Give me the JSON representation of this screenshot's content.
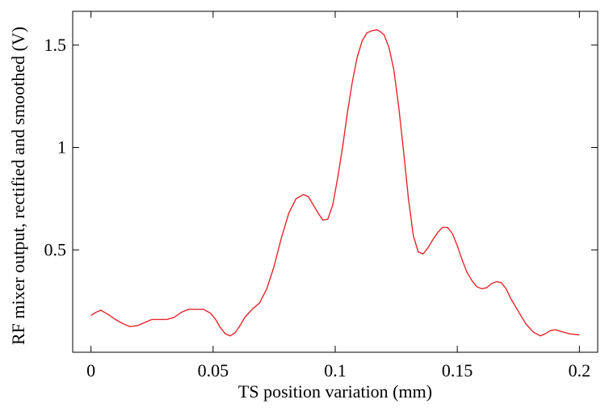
{
  "chart_data": {
    "type": "line",
    "title": "",
    "xlabel": "TS position variation (mm)",
    "ylabel": "RF mixer output, rectified and smoothed (V)",
    "xlim": [
      -0.0075,
      0.2075
    ],
    "ylim": [
      0.0,
      1.665
    ],
    "x_ticks": [
      0,
      0.05,
      0.1,
      0.15,
      0.2
    ],
    "x_tick_labels": [
      "0",
      "0.05",
      "0.1",
      "0.15",
      "0.2"
    ],
    "y_ticks": [
      0.5,
      1,
      1.5
    ],
    "y_tick_labels": [
      "0.5",
      "1",
      "1.5"
    ],
    "grid": false,
    "line_color": "#e8262b",
    "series": [
      {
        "x": [
          0.0,
          0.002,
          0.004,
          0.007,
          0.01,
          0.013,
          0.016,
          0.019,
          0.022,
          0.025,
          0.028,
          0.031,
          0.034,
          0.037,
          0.04,
          0.043,
          0.046,
          0.049,
          0.051,
          0.053,
          0.055,
          0.057,
          0.059,
          0.061,
          0.063,
          0.066,
          0.069,
          0.072,
          0.075,
          0.078,
          0.081,
          0.084,
          0.087,
          0.089,
          0.091,
          0.093,
          0.095,
          0.097,
          0.099,
          0.101,
          0.103,
          0.105,
          0.107,
          0.109,
          0.111,
          0.113,
          0.115,
          0.117,
          0.118,
          0.12,
          0.122,
          0.124,
          0.126,
          0.128,
          0.13,
          0.132,
          0.134,
          0.136,
          0.138,
          0.14,
          0.142,
          0.144,
          0.146,
          0.148,
          0.15,
          0.152,
          0.154,
          0.156,
          0.158,
          0.16,
          0.162,
          0.164,
          0.166,
          0.168,
          0.17,
          0.172,
          0.175,
          0.178,
          0.181,
          0.184,
          0.186,
          0.188,
          0.19,
          0.193,
          0.196,
          0.2
        ],
        "y": [
          0.18,
          0.195,
          0.205,
          0.185,
          0.16,
          0.14,
          0.125,
          0.13,
          0.145,
          0.16,
          0.16,
          0.16,
          0.17,
          0.195,
          0.21,
          0.21,
          0.21,
          0.19,
          0.16,
          0.12,
          0.09,
          0.08,
          0.095,
          0.13,
          0.17,
          0.21,
          0.24,
          0.31,
          0.42,
          0.56,
          0.68,
          0.75,
          0.77,
          0.76,
          0.72,
          0.68,
          0.645,
          0.65,
          0.72,
          0.85,
          1.0,
          1.17,
          1.32,
          1.44,
          1.52,
          1.56,
          1.57,
          1.575,
          1.57,
          1.55,
          1.49,
          1.38,
          1.2,
          0.98,
          0.75,
          0.57,
          0.49,
          0.48,
          0.51,
          0.55,
          0.585,
          0.61,
          0.61,
          0.58,
          0.52,
          0.45,
          0.39,
          0.35,
          0.32,
          0.31,
          0.315,
          0.335,
          0.345,
          0.34,
          0.31,
          0.26,
          0.2,
          0.14,
          0.1,
          0.08,
          0.09,
          0.105,
          0.11,
          0.1,
          0.09,
          0.085
        ]
      }
    ]
  }
}
